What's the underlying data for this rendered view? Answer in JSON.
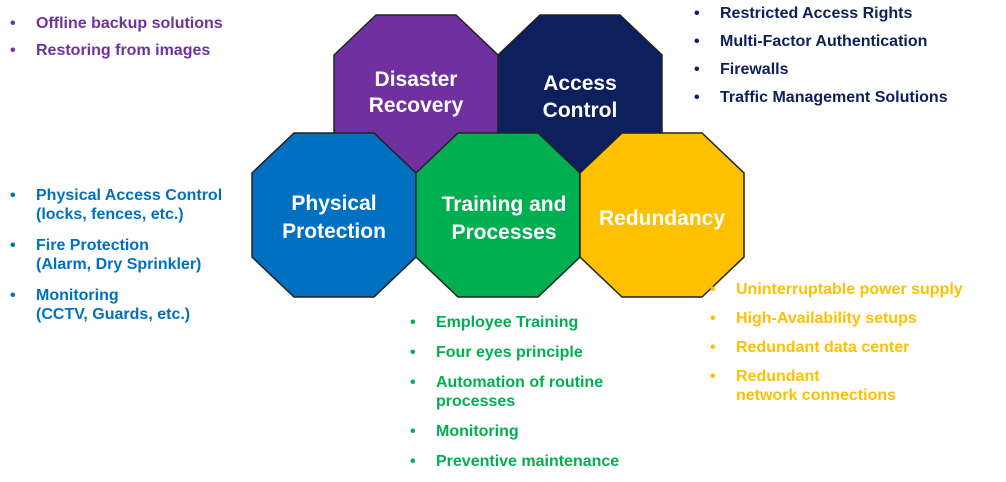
{
  "colors": {
    "purple": "#7030a0",
    "navy": "#0d1f5c",
    "blue": "#0070c0",
    "green": "#00b050",
    "gold": "#ffc000",
    "outline": "#222222"
  },
  "hexagons": {
    "disaster_recovery": {
      "line1": "Disaster",
      "line2": "Recovery"
    },
    "access_control": {
      "line1": "Access",
      "line2": "Control"
    },
    "physical_protection": {
      "line1": "Physical",
      "line2": "Protection"
    },
    "training_processes": {
      "line1": "Training and",
      "line2": "Processes"
    },
    "redundancy": {
      "line1": "Redundancy"
    }
  },
  "lists": {
    "disaster_recovery": [
      "Offline backup solutions",
      "Restoring from images"
    ],
    "access_control": [
      "Restricted Access Rights",
      "Multi-Factor Authentication",
      "Firewalls",
      "Traffic Management Solutions"
    ],
    "physical_protection": [
      {
        "line1": "Physical Access Control",
        "line2": "(locks, fences, etc.)"
      },
      {
        "line1": "Fire Protection",
        "line2": "(Alarm, Dry Sprinkler)"
      },
      {
        "line1": "Monitoring",
        "line2": "(CCTV, Guards, etc.)"
      }
    ],
    "training_processes": [
      {
        "line1": "Employee Training"
      },
      {
        "line1": "Four eyes principle"
      },
      {
        "line1": "Automation of routine",
        "line2": "processes"
      },
      {
        "line1": "Monitoring"
      },
      {
        "line1": "Preventive maintenance"
      }
    ],
    "redundancy": [
      {
        "line1": "Uninterruptable power supply"
      },
      {
        "line1": "High-Availability setups"
      },
      {
        "line1": "Redundant data center"
      },
      {
        "line1": "Redundant",
        "line2": "network connections"
      }
    ]
  }
}
